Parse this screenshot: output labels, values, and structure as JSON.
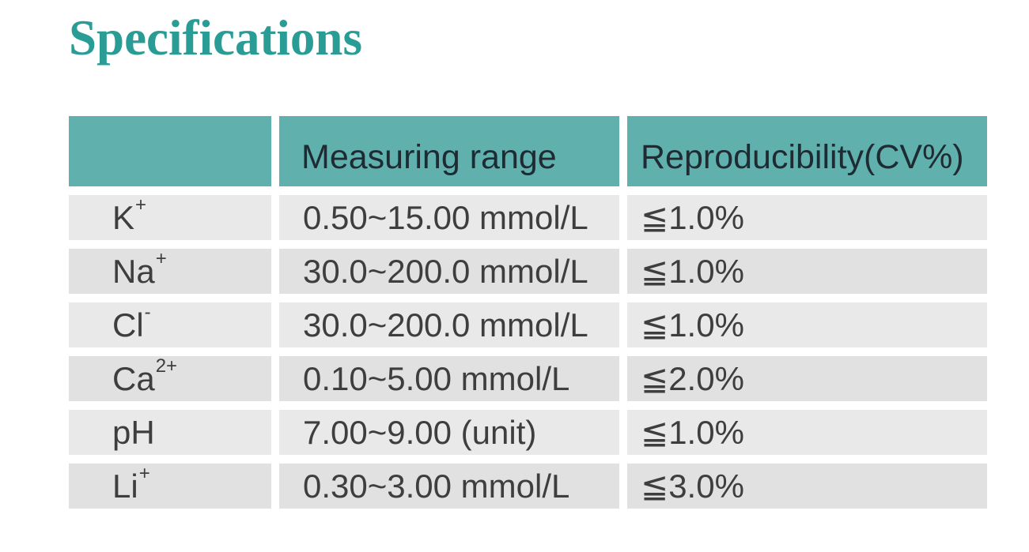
{
  "page": {
    "title": "Specifications"
  },
  "colors": {
    "title_teal": "#2A9C96",
    "header_teal": "#60B1AE",
    "header_text": "#1E2B33",
    "body_text": "#3E3E3E",
    "row_light": "#EAE9E9",
    "row_dark": "#E2E1E1",
    "page_bg": "#FFFFFF"
  },
  "table": {
    "columns": [
      "",
      "Measuring range",
      "Reproducibility(CV%)"
    ],
    "rows": [
      {
        "ion": "K",
        "ion_sup": "+",
        "range": "0.50~15.00 mmol/L",
        "cv": "≦1.0%"
      },
      {
        "ion": "Na",
        "ion_sup": "+",
        "range": "30.0~200.0 mmol/L",
        "cv": "≦1.0%"
      },
      {
        "ion": "Cl",
        "ion_sup": "-",
        "range": "30.0~200.0 mmol/L",
        "cv": "≦1.0%"
      },
      {
        "ion": "Ca",
        "ion_sup": "2+",
        "range": "0.10~5.00 mmol/L",
        "cv": "≦2.0%"
      },
      {
        "ion": "pH",
        "ion_sup": "",
        "range": "7.00~9.00 (unit)",
        "cv": "≦1.0%"
      },
      {
        "ion": "Li",
        "ion_sup": "+",
        "range": "0.30~3.00 mmol/L",
        "cv": "≦3.0%"
      }
    ]
  }
}
